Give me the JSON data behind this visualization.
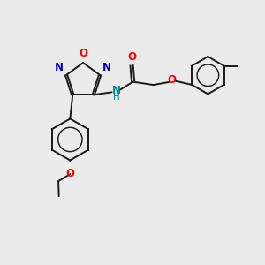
{
  "bg_color": "#ebebeb",
  "bond_color": "#1a1a1a",
  "oxygen_color": "#ff0000",
  "nitrogen_color": "#0000cd",
  "nh_color": "#008b8b",
  "line_width": 1.4,
  "font_size": 8.5,
  "fig_width": 3.0,
  "fig_height": 3.0,
  "dpi": 100,
  "xlim": [
    0,
    10
  ],
  "ylim": [
    0,
    10
  ]
}
